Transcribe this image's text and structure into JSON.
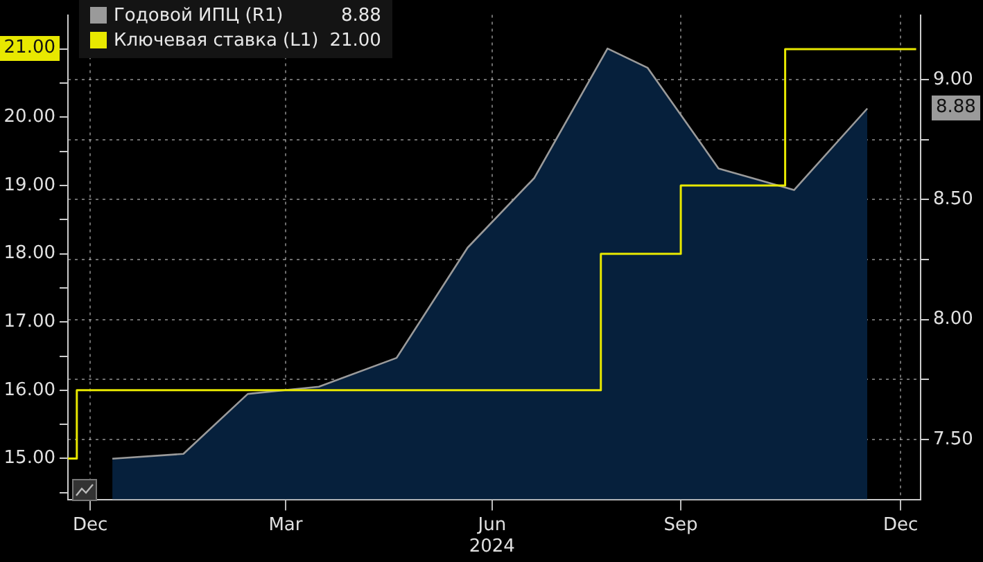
{
  "chart_data": {
    "type": "area",
    "xlim": [
      "2023-12-11",
      "2024-12-29"
    ],
    "xticks": [
      {
        "value": "2023-12-21",
        "label": "Dec"
      },
      {
        "value": "2024-03-18",
        "label": "Mar"
      },
      {
        "value": "2024-06-19",
        "label": "Jun\n2024"
      },
      {
        "value": "2024-09-12",
        "label": "Sep"
      },
      {
        "value": "2024-12-20",
        "label": "Dec"
      }
    ],
    "ylim": [
      14.4,
      21.5
    ],
    "yticks": [
      {
        "value": 14.5,
        "label": null
      },
      {
        "value": 15,
        "label": "15.00"
      },
      {
        "value": 15.5,
        "label": null
      },
      {
        "value": 16,
        "label": "16.00"
      },
      {
        "value": 16.5,
        "label": null
      },
      {
        "value": 17,
        "label": "17.00"
      },
      {
        "value": 17.5,
        "label": null
      },
      {
        "value": 18,
        "label": "18.00"
      },
      {
        "value": 18.5,
        "label": null
      },
      {
        "value": 19,
        "label": "19.00"
      },
      {
        "value": 19.5,
        "label": null
      },
      {
        "value": 20,
        "label": "20.00"
      },
      {
        "value": 20.5,
        "label": null
      },
      {
        "value": 21,
        "label": null
      }
    ],
    "y2lim": [
      7.25,
      9.27
    ],
    "y2ticks": [
      {
        "value": 7.5,
        "label": "7.50"
      },
      {
        "value": 7.75,
        "label": null
      },
      {
        "value": 8,
        "label": "8.00"
      },
      {
        "value": 8.25,
        "label": null
      },
      {
        "value": 8.5,
        "label": "8.50"
      },
      {
        "value": 8.75,
        "label": null
      },
      {
        "value": 9,
        "label": "9.00"
      }
    ],
    "grid": true,
    "legend": "top left",
    "annotations": [
      "8.88",
      "21.00",
      "8.88",
      "21.00"
    ],
    "series": [
      {
        "name": "Годовой ИПЦ (R1)",
        "axis": "y2",
        "color": "#9a9a9a",
        "x": [
          "2023-12-31",
          "2024-02-01",
          "2024-03-01",
          "2024-04-02",
          "2024-05-07",
          "2024-06-08",
          "2024-07-08",
          "2024-08-10",
          "2024-08-28",
          "2024-09-29",
          "2024-11-02",
          "2024-12-05"
        ],
        "values": [
          7.42,
          7.44,
          7.69,
          7.72,
          7.84,
          8.3,
          8.59,
          9.13,
          9.05,
          8.63,
          8.54,
          8.88
        ]
      },
      {
        "name": "Ключевая ставка (L1)",
        "type": "step",
        "axis": "y",
        "color": "#e8e800",
        "x": [
          "2023-12-11",
          "2023-12-15",
          "2024-08-07",
          "2024-09-12",
          "2024-10-29",
          "2024-12-27"
        ],
        "values": [
          15,
          16,
          18,
          19,
          21,
          21
        ]
      }
    ]
  }
}
